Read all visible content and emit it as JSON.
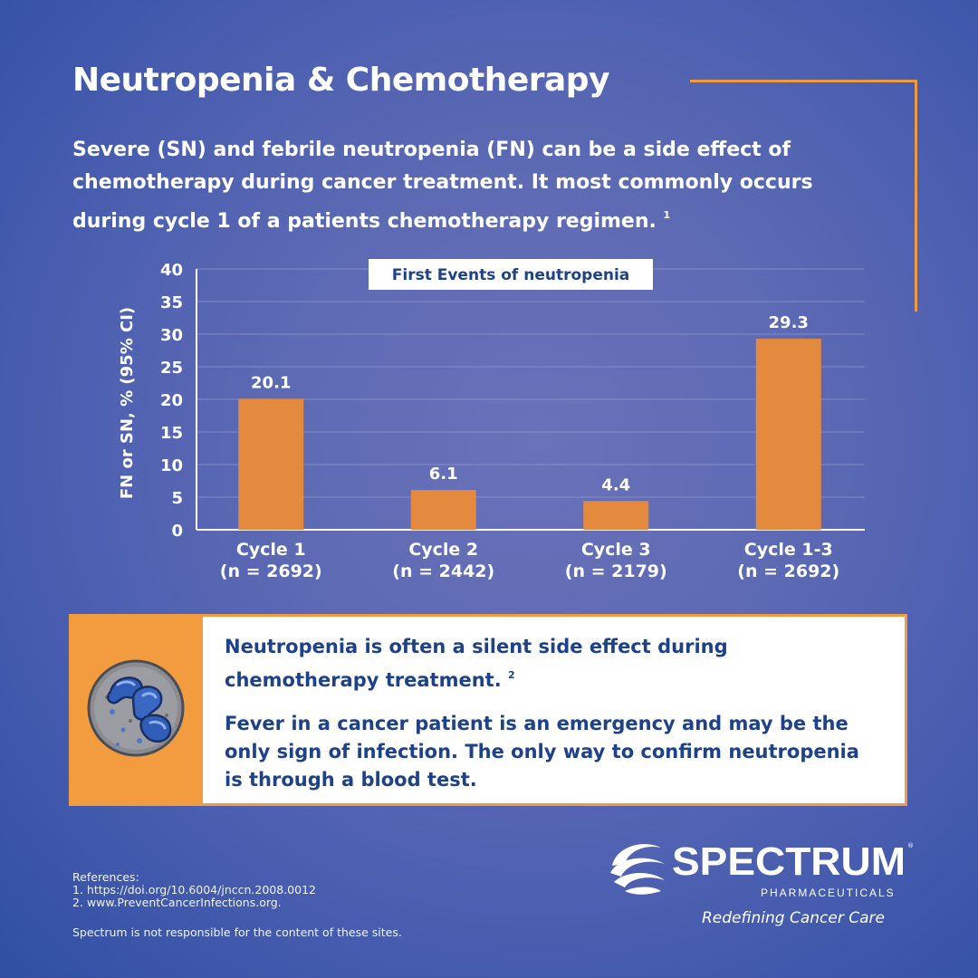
{
  "header": {
    "title": "Neutropenia & Chemotherapy",
    "intro": "Severe (SN) and febrile neutropenia (FN) can be a side effect of chemotherapy during cancer treatment. It most commonly occurs during cycle 1 of a patients chemotherapy regimen.",
    "intro_ref": "1"
  },
  "colors": {
    "accent_orange": "#ef9a3f",
    "bar_orange": "#e38a3e",
    "navy_text": "#1d4289"
  },
  "chart_data": {
    "type": "bar",
    "title": "First Events of neutropenia",
    "ylabel": "FN or SN, % (95% CI)",
    "xlabel": "",
    "ylim": [
      0,
      40
    ],
    "yticks": [
      0,
      5,
      10,
      15,
      20,
      25,
      30,
      35,
      40
    ],
    "grid": true,
    "categories": [
      [
        "Cycle 1",
        "(n = 2692)"
      ],
      [
        "Cycle 2",
        "(n = 2442)"
      ],
      [
        "Cycle 3",
        "(n = 2179)"
      ],
      [
        "Cycle 1-3",
        "(n = 2692)"
      ]
    ],
    "values": [
      20.1,
      6.1,
      4.4,
      29.3
    ],
    "data_labels": [
      "20.1",
      "6.1",
      "4.4",
      "29.3"
    ]
  },
  "callout": {
    "line1": "Neutropenia is often a silent side effect during chemotherapy treatment.",
    "line1_ref": "2",
    "line2": "Fever in a cancer patient is an emergency and may be the only sign of infection. The only way to confirm neutropenia is through a blood test."
  },
  "footer": {
    "references_heading": "References:",
    "references": [
      "1. https://doi.org/10.6004/jnccn.2008.0012",
      "2. www.PreventCancerInfections.org."
    ],
    "disclaimer": "Spectrum is not responsible for the content of these sites.",
    "logo_word": "SPECTRUM",
    "logo_sub": "PHARMACEUTICALS",
    "tagline": "Redefining Cancer Care"
  }
}
